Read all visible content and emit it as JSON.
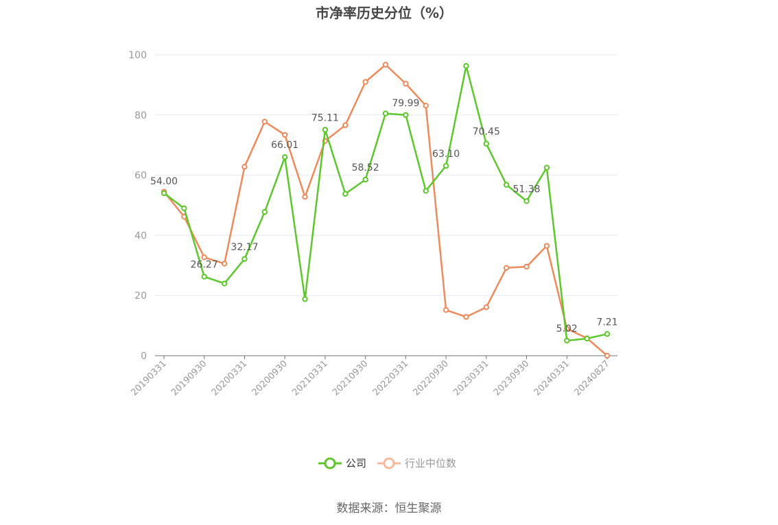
{
  "chart_data": {
    "type": "line",
    "title": "市净率历史分位（%）",
    "xlabel": "",
    "ylabel": "",
    "ylim": [
      0,
      100
    ],
    "yticks": [
      "0",
      "20",
      "40",
      "60",
      "80",
      "100"
    ],
    "x": [
      "20190331",
      "20190630",
      "20190930",
      "20191231",
      "20200331",
      "20200630",
      "20200930",
      "20201231",
      "20210331",
      "20210630",
      "20210930",
      "20211231",
      "20220331",
      "20220630",
      "20220930",
      "20221231",
      "20230331",
      "20230630",
      "20230930",
      "20231231",
      "20240331",
      "20240630",
      "20240827"
    ],
    "xtick_labels": [
      "20190331",
      "20190930",
      "20200331",
      "20200930",
      "20210331",
      "20210930",
      "20220331",
      "20220930",
      "20230331",
      "20230930",
      "20240331",
      "20240827"
    ],
    "series": [
      {
        "name": "公司",
        "color": "#5cc72a",
        "values": [
          54.0,
          49.0,
          26.27,
          24.0,
          32.17,
          47.8,
          66.01,
          18.8,
          75.11,
          53.8,
          58.52,
          80.5,
          79.99,
          54.8,
          63.1,
          96.3,
          70.45,
          56.8,
          51.38,
          62.5,
          5.02,
          5.7,
          7.21
        ],
        "data_labels": [
          {
            "index": 0,
            "text": "54.00"
          },
          {
            "index": 2,
            "text": "26.27"
          },
          {
            "index": 4,
            "text": "32.17"
          },
          {
            "index": 6,
            "text": "66.01"
          },
          {
            "index": 8,
            "text": "75.11"
          },
          {
            "index": 10,
            "text": "58.52"
          },
          {
            "index": 12,
            "text": "79.99"
          },
          {
            "index": 14,
            "text": "63.10"
          },
          {
            "index": 16,
            "text": "70.45"
          },
          {
            "index": 18,
            "text": "51.38"
          },
          {
            "index": 20,
            "text": "5.02"
          },
          {
            "index": 22,
            "text": "7.21"
          }
        ]
      },
      {
        "name": "行业中位数",
        "color": "#f0895a",
        "values": [
          54.5,
          46.2,
          32.7,
          30.6,
          62.8,
          77.8,
          73.4,
          52.8,
          71.4,
          76.6,
          91.0,
          96.7,
          90.4,
          83.1,
          15.2,
          12.9,
          16.1,
          29.2,
          29.6,
          36.5,
          9.0,
          5.8,
          0.0
        ]
      }
    ],
    "grid": true,
    "legend_position": "bottom-center"
  },
  "legend": {
    "items": [
      {
        "label": "公司",
        "color": "#5cc72a"
      },
      {
        "label": "行业中位数",
        "color": "#f6b89a"
      }
    ]
  },
  "source": "数据来源：恒生聚源"
}
